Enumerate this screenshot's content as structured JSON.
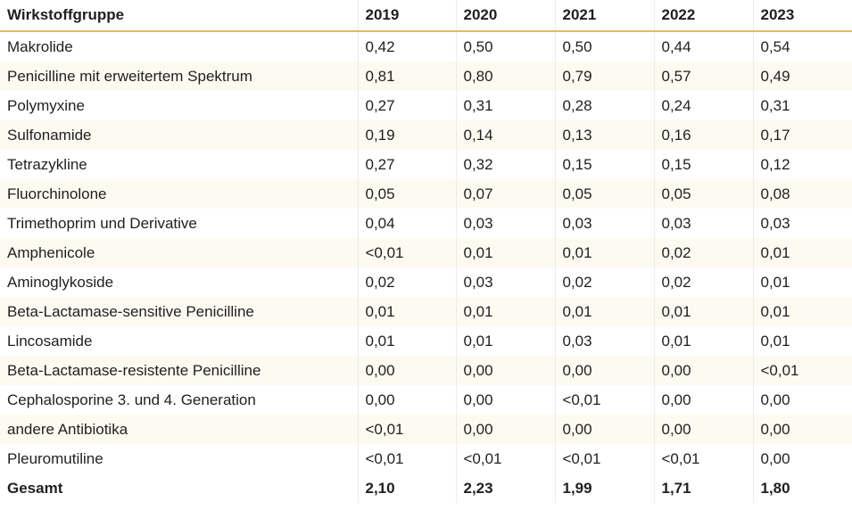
{
  "chart_data": {
    "type": "table",
    "columns": [
      "Wirkstoffgruppe",
      "2019",
      "2020",
      "2021",
      "2022",
      "2023"
    ],
    "rows": [
      [
        "Makrolide",
        "0,42",
        "0,50",
        "0,50",
        "0,44",
        "0,54"
      ],
      [
        "Penicilline mit erweitertem Spektrum",
        "0,81",
        "0,80",
        "0,79",
        "0,57",
        "0,49"
      ],
      [
        "Polymyxine",
        "0,27",
        "0,31",
        "0,28",
        "0,24",
        "0,31"
      ],
      [
        "Sulfonamide",
        "0,19",
        "0,14",
        "0,13",
        "0,16",
        "0,17"
      ],
      [
        "Tetrazykline",
        "0,27",
        "0,32",
        "0,15",
        "0,15",
        "0,12"
      ],
      [
        "Fluorchinolone",
        "0,05",
        "0,07",
        "0,05",
        "0,05",
        "0,08"
      ],
      [
        "Trimethoprim und Derivative",
        "0,04",
        "0,03",
        "0,03",
        "0,03",
        "0,03"
      ],
      [
        "Amphenicole",
        "<0,01",
        "0,01",
        "0,01",
        "0,02",
        "0,01"
      ],
      [
        "Aminoglykoside",
        "0,02",
        "0,03",
        "0,02",
        "0,02",
        "0,01"
      ],
      [
        "Beta-Lactamase-sensitive Penicilline",
        "0,01",
        "0,01",
        "0,01",
        "0,01",
        "0,01"
      ],
      [
        "Lincosamide",
        "0,01",
        "0,01",
        "0,03",
        "0,01",
        "0,01"
      ],
      [
        "Beta-Lactamase-resistente Penicilline",
        "0,00",
        "0,00",
        "0,00",
        "0,00",
        "<0,01"
      ],
      [
        "Cephalosporine 3. und 4. Generation",
        "0,00",
        "0,00",
        "<0,01",
        "0,00",
        "0,00"
      ],
      [
        "andere Antibiotika",
        "<0,01",
        "0,00",
        "0,00",
        "0,00",
        "0,00"
      ],
      [
        "Pleuromutiline",
        "<0,01",
        "<0,01",
        "<0,01",
        "<0,01",
        "0,00"
      ]
    ],
    "total": [
      "Gesamt",
      "2,10",
      "2,23",
      "1,99",
      "1,71",
      "1,80"
    ],
    "colors": {
      "header_rule": "#f0b74a",
      "zebra_row": "#fdfaf2",
      "column_divider": "#ececec",
      "text": "#1f1f1f"
    }
  }
}
